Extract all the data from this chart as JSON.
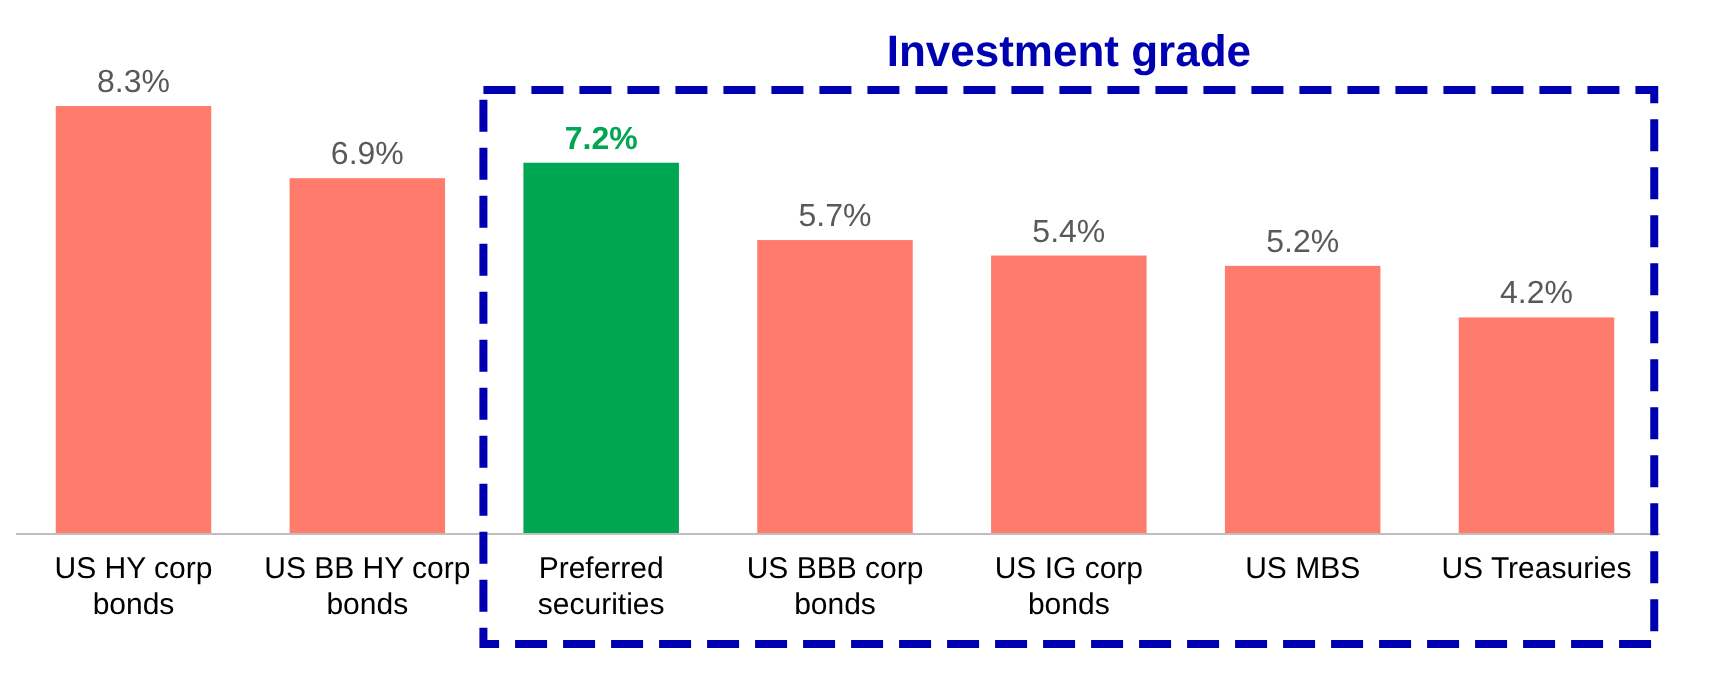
{
  "chart_data": {
    "type": "bar",
    "categories": [
      "US HY corp bonds",
      "US BB HY corp bonds",
      "Preferred securities",
      "US BBB corp bonds",
      "US IG corp bonds",
      "US MBS",
      "US Treasuries"
    ],
    "values": [
      8.3,
      6.9,
      7.2,
      5.7,
      5.4,
      5.2,
      4.2
    ],
    "colors": [
      "#ff7b6b",
      "#ff7b6b",
      "#00a651",
      "#ff7b6b",
      "#ff7b6b",
      "#ff7b6b",
      "#ff7b6b"
    ],
    "value_labels": [
      "8.3%",
      "6.9%",
      "7.2%",
      "5.7%",
      "5.4%",
      "5.2%",
      "4.2%"
    ],
    "annotations": [
      "Investment grade"
    ]
  }
}
